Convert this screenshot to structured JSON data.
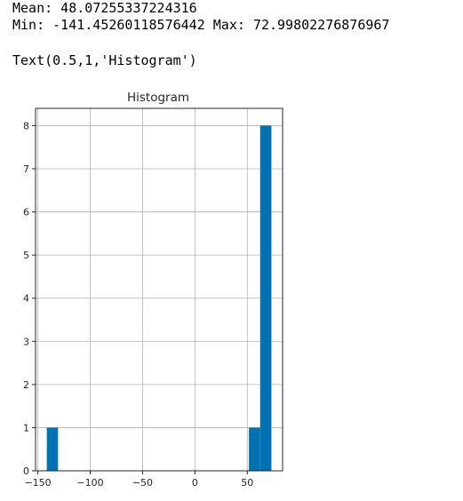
{
  "output": {
    "mean_line": "Mean: 48.07255337224316",
    "minmax_line": "Min: -141.45260118576442 Max: 72.99802276876967",
    "text_repr": "Text(0.5,1,'Histogram')"
  },
  "chart_data": {
    "type": "bar",
    "title": "Histogram",
    "xlabel": "",
    "ylabel": "",
    "xlim": [
      -152.2,
      83.7
    ],
    "ylim": [
      0,
      8.4
    ],
    "xticks": [
      -150,
      -100,
      -50,
      0,
      50
    ],
    "yticks": [
      0,
      1,
      2,
      3,
      4,
      5,
      6,
      7,
      8
    ],
    "grid": true,
    "bar_color": "#0072b2",
    "bins": [
      {
        "x0": -141.45,
        "x1": -130.73,
        "count": 1
      },
      {
        "x0": -130.73,
        "x1": -120.01,
        "count": 0
      },
      {
        "x0": -120.01,
        "x1": -109.29,
        "count": 0
      },
      {
        "x0": -109.29,
        "x1": -98.56,
        "count": 0
      },
      {
        "x0": -98.56,
        "x1": -87.84,
        "count": 0
      },
      {
        "x0": -87.84,
        "x1": -77.12,
        "count": 0
      },
      {
        "x0": -77.12,
        "x1": -66.4,
        "count": 0
      },
      {
        "x0": -66.4,
        "x1": -55.68,
        "count": 0
      },
      {
        "x0": -55.68,
        "x1": -44.95,
        "count": 0
      },
      {
        "x0": -44.95,
        "x1": -34.23,
        "count": 0
      },
      {
        "x0": -34.23,
        "x1": -23.51,
        "count": 0
      },
      {
        "x0": -23.51,
        "x1": -12.79,
        "count": 0
      },
      {
        "x0": -12.79,
        "x1": -2.07,
        "count": 0
      },
      {
        "x0": -2.07,
        "x1": 8.66,
        "count": 0
      },
      {
        "x0": 8.66,
        "x1": 19.38,
        "count": 0
      },
      {
        "x0": 19.38,
        "x1": 30.1,
        "count": 0
      },
      {
        "x0": 30.1,
        "x1": 40.82,
        "count": 0
      },
      {
        "x0": 40.82,
        "x1": 51.54,
        "count": 0
      },
      {
        "x0": 51.54,
        "x1": 62.27,
        "count": 1
      },
      {
        "x0": 62.27,
        "x1": 73.0,
        "count": 8
      }
    ]
  }
}
